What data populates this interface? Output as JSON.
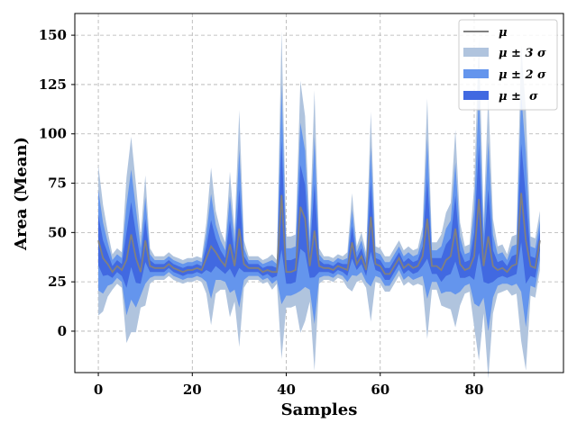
{
  "chart_data": {
    "type": "area",
    "title": "",
    "xlabel": "Samples",
    "ylabel": "Area (Mean)",
    "xlim": [
      -5,
      99
    ],
    "ylim": [
      -21,
      161
    ],
    "xticks": [
      0,
      20,
      40,
      60,
      80
    ],
    "yticks": [
      0,
      25,
      50,
      75,
      100,
      125,
      150
    ],
    "grid": true,
    "legend_position": "top-right",
    "legend": [
      "μ",
      "μ ± 3 σ",
      "μ ± 2 σ",
      "μ ±  σ"
    ],
    "colors": {
      "mean": "#808080",
      "band3": "#b0c4de",
      "band2": "#6495ed",
      "band1": "#4169e1"
    },
    "x": [
      0,
      1,
      2,
      3,
      4,
      5,
      6,
      7,
      8,
      9,
      10,
      11,
      12,
      13,
      14,
      15,
      16,
      17,
      18,
      19,
      20,
      21,
      22,
      23,
      24,
      25,
      26,
      27,
      28,
      29,
      30,
      31,
      32,
      33,
      34,
      35,
      36,
      37,
      38,
      39,
      40,
      41,
      42,
      43,
      44,
      45,
      46,
      47,
      48,
      49,
      50,
      51,
      52,
      53,
      54,
      55,
      56,
      57,
      58,
      59,
      60,
      61,
      62,
      63,
      64,
      65,
      66,
      67,
      68,
      69,
      70,
      71,
      72,
      73,
      74,
      75,
      76,
      77,
      78,
      79,
      80,
      81,
      82,
      83,
      84,
      85,
      86,
      87,
      88,
      89,
      90,
      91,
      92,
      93,
      94
    ],
    "mean": [
      46,
      37,
      34,
      30,
      33,
      31,
      36,
      49,
      37,
      30,
      46,
      33,
      32,
      32,
      32,
      34,
      32,
      31,
      30,
      31,
      31,
      32,
      31,
      37,
      43,
      40,
      36,
      33,
      44,
      33,
      52,
      34,
      32,
      32,
      32,
      30,
      31,
      30,
      30,
      69,
      30,
      30,
      31,
      63,
      57,
      33,
      51,
      33,
      32,
      32,
      31,
      33,
      32,
      31,
      45,
      34,
      38,
      31,
      58,
      34,
      33,
      29,
      29,
      33,
      37,
      32,
      34,
      32,
      33,
      38,
      57,
      33,
      33,
      31,
      36,
      38,
      52,
      34,
      31,
      32,
      38,
      67,
      33,
      48,
      33,
      31,
      32,
      30,
      33,
      34,
      70,
      46,
      33,
      32,
      46
    ],
    "sigma": [
      12.7,
      9.0,
      5.5,
      3.0,
      3.0,
      3.0,
      14.0,
      16.5,
      12.5,
      6.0,
      11.0,
      3.0,
      2.0,
      2.0,
      2.0,
      2.0,
      2.0,
      2.0,
      2.0,
      2.0,
      2.0,
      2.0,
      2.0,
      6.0,
      13.3,
      7.0,
      5.0,
      4.0,
      12.3,
      6.0,
      20.0,
      4.0,
      2.0,
      2.0,
      2.0,
      2.0,
      2.0,
      3.0,
      2.0,
      27.7,
      6.0,
      6.0,
      6.0,
      21.3,
      17.3,
      6.0,
      23.7,
      3.0,
      2.0,
      2.0,
      2.0,
      2.0,
      2.0,
      3.0,
      8.3,
      3.0,
      4.0,
      3.0,
      17.7,
      3.0,
      3.0,
      3.0,
      3.0,
      3.0,
      3.0,
      3.0,
      3.0,
      3.0,
      3.0,
      5.0,
      20.3,
      4.0,
      4.0,
      6.0,
      8.0,
      9.0,
      16.7,
      7.0,
      4.0,
      4.0,
      12.0,
      27.3,
      8.0,
      24.0,
      8.0,
      4.0,
      4.0,
      3.0,
      5.0,
      5.0,
      25.0,
      22.0,
      5.0,
      5.0,
      5.0
    ]
  }
}
